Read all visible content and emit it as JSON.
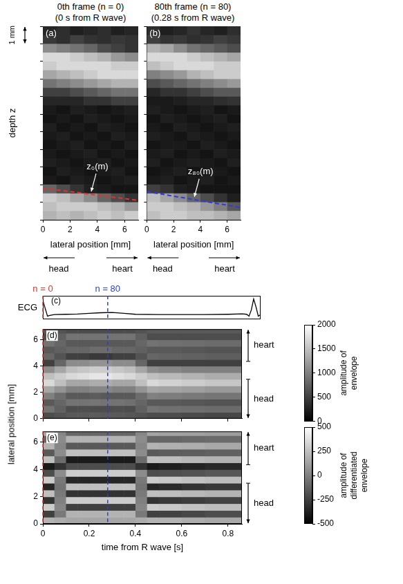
{
  "chart_data": [
    {
      "type": "image",
      "panel": "(a)",
      "title": "0th frame (n = 0)",
      "subtitle": "(0 s from R wave)",
      "xlabel": "lateral position [mm]",
      "ylabel": "depth z",
      "scale_bar": {
        "label": "1 mm",
        "length": 1
      },
      "direction_labels": {
        "left": "head",
        "right": "heart"
      },
      "xlim": [
        0,
        7
      ],
      "xticks": [
        0,
        2,
        4,
        6
      ],
      "ylim": [
        0,
        11
      ],
      "yticks": [
        0,
        1,
        2,
        3,
        4,
        5,
        6,
        7,
        8,
        9,
        10,
        11
      ],
      "tick_labels": "x",
      "color_range": [
        0,
        100
      ],
      "x_edges": [
        0,
        1,
        2,
        3,
        4,
        5,
        6,
        7
      ],
      "y_edges": [
        0,
        0.5,
        1,
        1.5,
        2,
        2.5,
        3,
        3.5,
        4,
        4.5,
        5,
        5.5,
        6,
        6.5,
        7,
        7.5,
        8,
        8.5,
        9,
        9.5,
        10,
        10.5,
        11
      ],
      "cells": [
        [
          15,
          18,
          12,
          15,
          18,
          12,
          15
        ],
        [
          22,
          18,
          25,
          20,
          18,
          22,
          20
        ],
        [
          55,
          50,
          45,
          40,
          30,
          25,
          20
        ],
        [
          85,
          85,
          80,
          75,
          70,
          60,
          55
        ],
        [
          80,
          85,
          85,
          85,
          85,
          80,
          80
        ],
        [
          65,
          70,
          75,
          80,
          85,
          85,
          85
        ],
        [
          45,
          50,
          55,
          60,
          65,
          70,
          70
        ],
        [
          25,
          25,
          30,
          35,
          40,
          45,
          45
        ],
        [
          15,
          15,
          15,
          20,
          20,
          25,
          25
        ],
        [
          10,
          8,
          12,
          10,
          8,
          10,
          12
        ],
        [
          8,
          10,
          8,
          12,
          10,
          8,
          10
        ],
        [
          12,
          8,
          10,
          8,
          12,
          10,
          8
        ],
        [
          10,
          12,
          8,
          10,
          8,
          12,
          10
        ],
        [
          8,
          10,
          12,
          8,
          10,
          8,
          12
        ],
        [
          10,
          8,
          10,
          12,
          8,
          10,
          8
        ],
        [
          12,
          10,
          8,
          10,
          12,
          8,
          10
        ],
        [
          8,
          12,
          10,
          8,
          10,
          12,
          8
        ],
        [
          10,
          8,
          12,
          10,
          8,
          10,
          12
        ],
        [
          40,
          30,
          20,
          12,
          10,
          8,
          8
        ],
        [
          80,
          75,
          65,
          55,
          40,
          30,
          20
        ],
        [
          75,
          80,
          80,
          80,
          75,
          70,
          60
        ],
        [
          70,
          75,
          70,
          75,
          80,
          75,
          80
        ]
      ],
      "series": [
        {
          "name": "z₀(m)",
          "color": "#e8312a",
          "line_style": "dashed",
          "x": [
            0,
            7
          ],
          "values": [
            9.2,
            9.9
          ]
        }
      ]
    },
    {
      "type": "image",
      "panel": "(b)",
      "title": "80th frame (n = 80)",
      "subtitle": "(0.28 s from R wave)",
      "xlabel": "lateral position [mm]",
      "direction_labels": {
        "left": "head",
        "right": "heart"
      },
      "xlim": [
        0,
        7
      ],
      "xticks": [
        0,
        2,
        4,
        6
      ],
      "ylim": [
        0,
        11
      ],
      "yticks": [
        0,
        1,
        2,
        3,
        4,
        5,
        6,
        7,
        8,
        9,
        10,
        11
      ],
      "tick_labels": "x",
      "color_range": [
        0,
        100
      ],
      "x_edges": [
        0,
        1,
        2,
        3,
        4,
        5,
        6,
        7
      ],
      "y_edges": [
        0,
        0.5,
        1,
        1.5,
        2,
        2.5,
        3,
        3.5,
        4,
        4.5,
        5,
        5.5,
        6,
        6.5,
        7,
        7.5,
        8,
        8.5,
        9,
        9.5,
        10,
        10.5,
        11
      ],
      "cells": [
        [
          18,
          12,
          15,
          20,
          15,
          12,
          18
        ],
        [
          25,
          20,
          22,
          18,
          20,
          25,
          22
        ],
        [
          70,
          65,
          55,
          45,
          40,
          35,
          30
        ],
        [
          85,
          85,
          85,
          80,
          75,
          70,
          65
        ],
        [
          75,
          80,
          85,
          85,
          85,
          80,
          80
        ],
        [
          50,
          55,
          60,
          70,
          75,
          80,
          80
        ],
        [
          30,
          35,
          40,
          45,
          50,
          55,
          60
        ],
        [
          15,
          20,
          20,
          25,
          30,
          35,
          35
        ],
        [
          10,
          10,
          12,
          15,
          15,
          18,
          20
        ],
        [
          12,
          10,
          8,
          10,
          12,
          8,
          10
        ],
        [
          8,
          12,
          10,
          8,
          10,
          12,
          8
        ],
        [
          10,
          8,
          12,
          10,
          8,
          10,
          12
        ],
        [
          12,
          10,
          8,
          12,
          10,
          8,
          10
        ],
        [
          8,
          10,
          10,
          8,
          12,
          10,
          8
        ],
        [
          10,
          12,
          8,
          10,
          8,
          12,
          10
        ],
        [
          12,
          8,
          10,
          12,
          10,
          8,
          12
        ],
        [
          8,
          10,
          12,
          8,
          10,
          10,
          8
        ],
        [
          10,
          12,
          8,
          10,
          12,
          8,
          10
        ],
        [
          25,
          20,
          12,
          10,
          8,
          8,
          8
        ],
        [
          75,
          65,
          55,
          40,
          30,
          20,
          12
        ],
        [
          80,
          80,
          75,
          70,
          60,
          50,
          35
        ],
        [
          75,
          80,
          80,
          75,
          75,
          70,
          65
        ]
      ],
      "series": [
        {
          "name": "z₈₀(m)",
          "color": "#2b3be6",
          "line_style": "dashed",
          "x": [
            0,
            7
          ],
          "values": [
            9.4,
            10.3
          ]
        }
      ]
    },
    {
      "type": "line",
      "panel": "(c)",
      "ylabel": "ECG",
      "color": "#000000",
      "tick_labels": false,
      "xlim": [
        0,
        0.94
      ],
      "ylim": [
        -0.3,
        1.2
      ],
      "x": [
        -0.01,
        0,
        0.01,
        0.02,
        0.03,
        0.05,
        0.1,
        0.15,
        0.2,
        0.25,
        0.3,
        0.35,
        0.4,
        0.5,
        0.6,
        0.7,
        0.8,
        0.86,
        0.88,
        0.89,
        0.9,
        0.91,
        0.92,
        0.93,
        0.94
      ],
      "values": [
        1.0,
        0.9,
        0.4,
        -0.1,
        -0.05,
        0,
        0.02,
        0.04,
        0.08,
        0.12,
        0.14,
        0.08,
        0.02,
        0,
        0,
        0,
        0.02,
        0.05,
        0.02,
        -0.1,
        0.3,
        1.0,
        0.5,
        -0.1,
        0
      ],
      "annotations": [
        {
          "x": 0,
          "label": "n = 0",
          "color": "#e8312a"
        },
        {
          "x": 0.28,
          "label": "n = 80",
          "color": "#2b3be6"
        }
      ]
    },
    {
      "type": "heatmap",
      "panel": "(d)",
      "ylabel": "lateral position [mm]",
      "tick_labels": "y",
      "direction_labels": {
        "top": "heart",
        "bottom": "head"
      },
      "xlim": [
        0,
        0.86
      ],
      "xticks": [
        0,
        0.2,
        0.4,
        0.6,
        0.8
      ],
      "ylim": [
        0,
        6.8
      ],
      "yticks": [
        0,
        2,
        4,
        6
      ],
      "x_edges": [
        0,
        0.05,
        0.1,
        0.15,
        0.2,
        0.25,
        0.3,
        0.35,
        0.4,
        0.45,
        0.5,
        0.6,
        0.7,
        0.86
      ],
      "y_edges": [
        0,
        0.5,
        1,
        1.5,
        2,
        2.5,
        3,
        3.5,
        4,
        4.5,
        5,
        5.5,
        6,
        6.5,
        6.8
      ],
      "cells": [
        [
          600,
          650,
          700,
          700,
          720,
          700,
          700,
          680,
          650,
          600,
          600,
          580,
          560
        ],
        [
          900,
          750,
          600,
          620,
          600,
          600,
          620,
          600,
          750,
          900,
          880,
          860,
          840
        ],
        [
          700,
          800,
          900,
          900,
          920,
          900,
          900,
          880,
          800,
          700,
          700,
          680,
          660
        ],
        [
          1000,
          850,
          700,
          700,
          720,
          700,
          700,
          700,
          850,
          1000,
          980,
          950,
          920
        ],
        [
          1300,
          1150,
          1000,
          1000,
          1050,
          1050,
          1000,
          1000,
          1150,
          1300,
          1280,
          1250,
          1200
        ],
        [
          1700,
          1500,
          1300,
          1300,
          1350,
          1350,
          1300,
          1300,
          1500,
          1700,
          1650,
          1600,
          1550
        ],
        [
          1500,
          1600,
          1700,
          1750,
          1800,
          1800,
          1750,
          1700,
          1600,
          1500,
          1450,
          1400,
          1350
        ],
        [
          1100,
          1300,
          1500,
          1550,
          1600,
          1600,
          1550,
          1500,
          1300,
          1100,
          1050,
          1000,
          1000
        ],
        [
          500,
          800,
          1100,
          1100,
          1150,
          1150,
          1100,
          1100,
          800,
          500,
          500,
          500,
          500
        ],
        [
          800,
          650,
          500,
          500,
          450,
          450,
          500,
          500,
          650,
          800,
          780,
          760,
          740
        ],
        [
          700,
          750,
          800,
          800,
          850,
          850,
          800,
          800,
          750,
          700,
          700,
          680,
          660
        ],
        [
          900,
          800,
          700,
          700,
          700,
          700,
          700,
          700,
          800,
          900,
          880,
          860,
          840
        ],
        [
          600,
          750,
          900,
          900,
          900,
          900,
          900,
          900,
          750,
          600,
          600,
          600,
          600
        ],
        [
          700,
          650,
          600,
          600,
          600,
          600,
          600,
          600,
          650,
          700,
          700,
          700,
          700
        ]
      ],
      "colorbar": {
        "label": "amplitude of envelope",
        "range": [
          0,
          2000
        ],
        "ticks": [
          0,
          500,
          1000,
          1500,
          2000
        ]
      }
    },
    {
      "type": "heatmap",
      "panel": "(e)",
      "xlabel": "time from R wave [s]",
      "direction_labels": {
        "top": "heart",
        "bottom": "head"
      },
      "xlim": [
        0,
        0.86
      ],
      "xticks": [
        0,
        0.2,
        0.4,
        0.6,
        0.8
      ],
      "ylim": [
        0,
        6.8
      ],
      "yticks": [
        0,
        2,
        4,
        6
      ],
      "x_edges": [
        0,
        0.05,
        0.1,
        0.15,
        0.2,
        0.25,
        0.3,
        0.35,
        0.4,
        0.45,
        0.5,
        0.6,
        0.7,
        0.86
      ],
      "y_edges": [
        0,
        0.5,
        1,
        1.5,
        2,
        2.5,
        3,
        3.5,
        4,
        4.5,
        5,
        5.5,
        6,
        6.5,
        6.8
      ],
      "cells": [
        [
          200,
          175,
          150,
          150,
          150,
          150,
          150,
          150,
          175,
          200,
          200,
          180,
          160
        ],
        [
          -250,
          -25,
          200,
          200,
          200,
          200,
          200,
          200,
          -25,
          -250,
          -240,
          -220,
          -200
        ],
        [
          300,
          25,
          -250,
          -250,
          -250,
          -250,
          -250,
          -250,
          25,
          300,
          280,
          260,
          240
        ],
        [
          -300,
          0,
          300,
          300,
          300,
          300,
          300,
          300,
          0,
          -300,
          -280,
          -260,
          -240
        ],
        [
          250,
          -25,
          -300,
          -300,
          -300,
          -300,
          -300,
          -300,
          -25,
          250,
          240,
          220,
          200
        ],
        [
          -350,
          -50,
          250,
          250,
          250,
          250,
          250,
          250,
          -50,
          -350,
          -330,
          -300,
          -280
        ],
        [
          300,
          -25,
          -350,
          -350,
          -350,
          -350,
          -350,
          -350,
          -25,
          300,
          280,
          260,
          240
        ],
        [
          -200,
          50,
          300,
          300,
          300,
          300,
          300,
          300,
          50,
          -200,
          -190,
          -180,
          -160
        ],
        [
          -400,
          -300,
          -200,
          -200,
          -200,
          -200,
          -200,
          -200,
          -300,
          -400,
          -380,
          -360,
          -340
        ],
        [
          250,
          -75,
          -400,
          -400,
          -400,
          -400,
          -400,
          -400,
          -75,
          250,
          240,
          220,
          200
        ],
        [
          -150,
          50,
          250,
          250,
          250,
          250,
          250,
          250,
          50,
          -150,
          -140,
          -130,
          -120
        ],
        [
          200,
          25,
          -150,
          -150,
          -150,
          -150,
          -150,
          -150,
          25,
          200,
          190,
          180,
          160
        ],
        [
          -100,
          50,
          200,
          200,
          200,
          200,
          200,
          200,
          50,
          -100,
          -100,
          -90,
          -80
        ],
        [
          150,
          25,
          -100,
          -100,
          -100,
          -100,
          -100,
          -100,
          25,
          150,
          140,
          130,
          120
        ]
      ],
      "colorbar": {
        "label": "amplitude of differentiated envelope",
        "range": [
          -500,
          500
        ],
        "ticks": [
          -500,
          -250,
          0,
          250,
          500
        ]
      }
    }
  ]
}
